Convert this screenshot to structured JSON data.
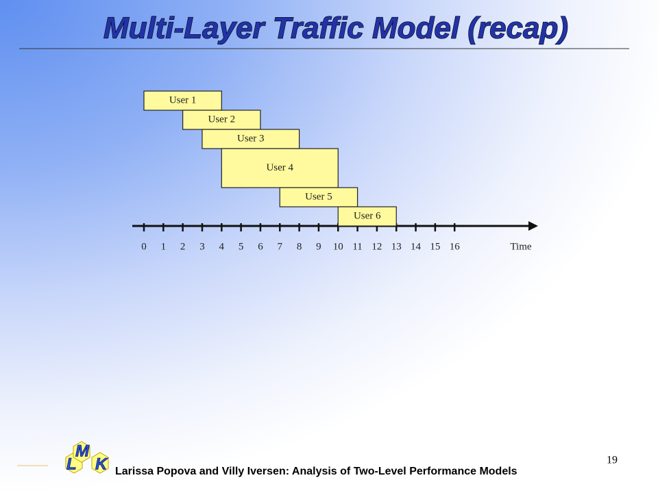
{
  "slide": {
    "title": "Multi-Layer Traffic Model (recap)",
    "footer": "Larissa Popova and Villy Iversen: Analysis of Two-Level Performance Models",
    "page_number": "19",
    "logo": [
      "L",
      "M",
      "K"
    ]
  },
  "chart_data": {
    "type": "gantt",
    "xlabel": "Time",
    "tasks": [
      {
        "name": "User 1",
        "start": 0,
        "end": 4
      },
      {
        "name": "User 2",
        "start": 2,
        "end": 6
      },
      {
        "name": "User 3",
        "start": 3,
        "end": 8
      },
      {
        "name": "User 4",
        "start": 4,
        "end": 10
      },
      {
        "name": "User 5",
        "start": 7,
        "end": 11
      },
      {
        "name": "User 6",
        "start": 10,
        "end": 13
      }
    ],
    "color": "#fffa9e",
    "xlim": [
      -0.6,
      20.3
    ],
    "xticks": [
      0,
      1,
      2,
      3,
      4,
      5,
      6,
      7,
      8,
      9,
      10,
      11,
      12,
      13,
      14,
      15,
      16
    ]
  }
}
